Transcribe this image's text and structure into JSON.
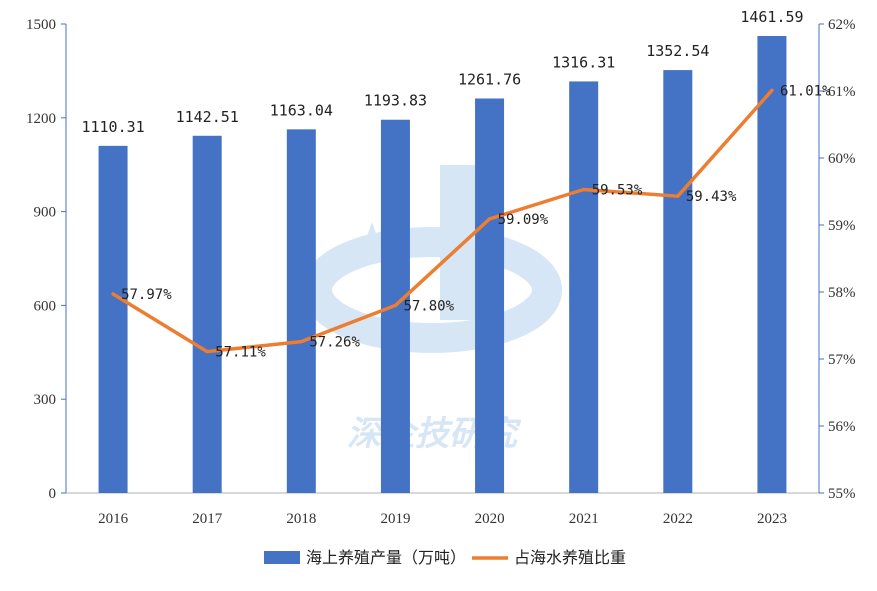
{
  "chart_data": {
    "type": "bar+line",
    "categories": [
      "2016",
      "2017",
      "2018",
      "2019",
      "2020",
      "2021",
      "2022",
      "2023"
    ],
    "series": [
      {
        "name": "海上养殖产量（万吨）",
        "type": "bar",
        "axis": "left",
        "values": [
          1110.31,
          1142.51,
          1163.04,
          1193.83,
          1261.76,
          1316.31,
          1352.54,
          1461.59
        ],
        "labels": [
          "1110.31",
          "1142.51",
          "1163.04",
          "1193.83",
          "1261.76",
          "1316.31",
          "1352.54",
          "1461.59"
        ],
        "color": "#4472C4"
      },
      {
        "name": "占海水养殖比重",
        "type": "line",
        "axis": "right",
        "values": [
          57.97,
          57.11,
          57.26,
          57.8,
          59.09,
          59.53,
          59.43,
          61.01
        ],
        "labels": [
          "57.97%",
          "57.11%",
          "57.26%",
          "57.80%",
          "59.09%",
          "59.53%",
          "59.43%",
          "61.01%"
        ],
        "color": "#ED7D31"
      }
    ],
    "y_left": {
      "lim": [
        0,
        1500
      ],
      "ticks": [
        0,
        300,
        600,
        900,
        1200,
        1500
      ],
      "tick_labels": [
        "0",
        "300",
        "600",
        "900",
        "1200",
        "1500"
      ]
    },
    "y_right": {
      "lim": [
        55,
        62
      ],
      "ticks": [
        55,
        56,
        57,
        58,
        59,
        60,
        61,
        62
      ],
      "tick_labels": [
        "55%",
        "56%",
        "57%",
        "58%",
        "59%",
        "60%",
        "61%",
        "62%"
      ]
    },
    "legend": {
      "position": "bottom-center",
      "items": [
        "海上养殖产量（万吨）",
        "占海水养殖比重"
      ]
    },
    "grid": false,
    "watermark": "深企技研究"
  }
}
